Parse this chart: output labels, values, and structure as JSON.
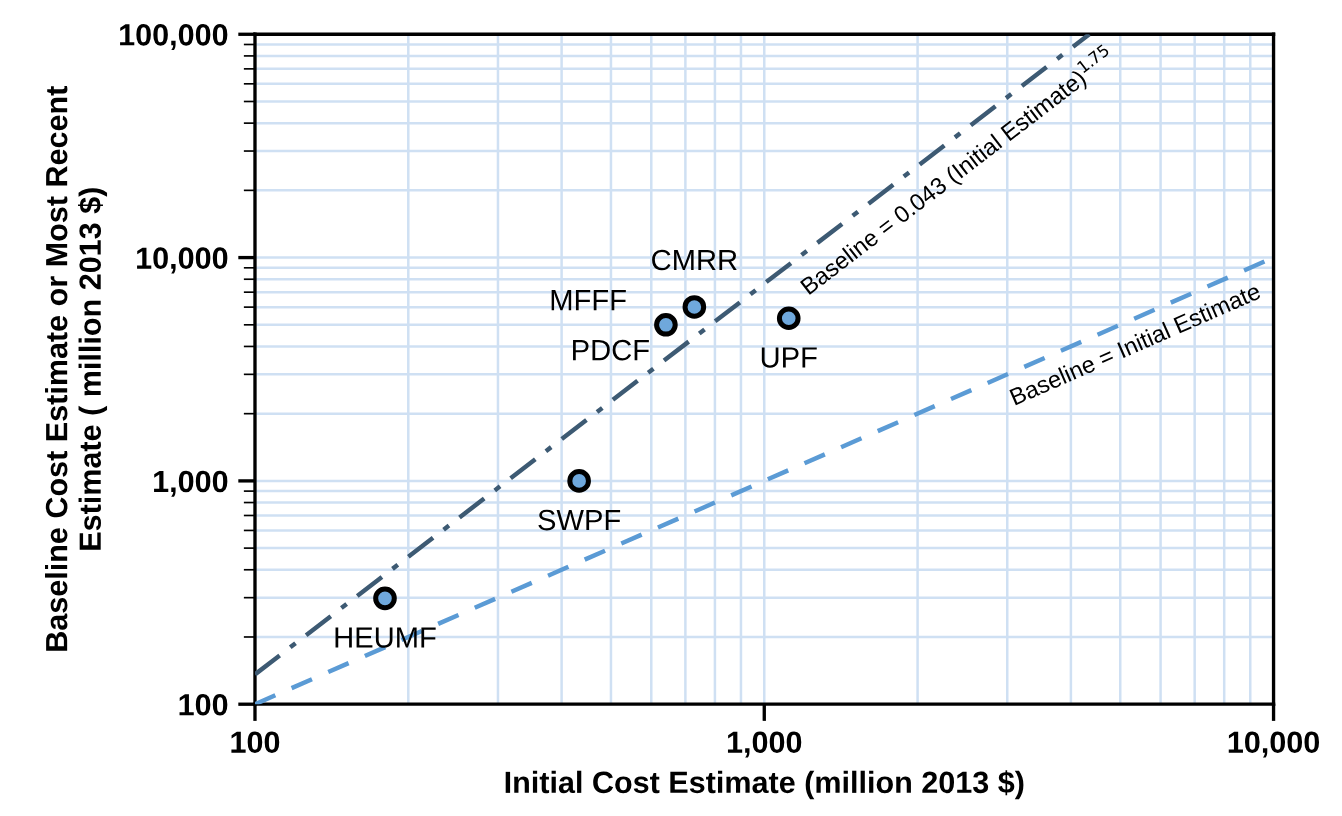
{
  "chart_data": {
    "type": "scatter",
    "xlabel": "Initial Cost Estimate (million 2013 $)",
    "ylabel": "Baseline Cost Estimate or Most Recent\nEstimate ( million 2013 $)",
    "log": "xy",
    "grid": true,
    "legend": false,
    "xlim": [
      100,
      10000
    ],
    "xticks": [
      100,
      {
        "value": 1000,
        "label": "1,000"
      },
      {
        "value": 10000,
        "label": "10,000"
      }
    ],
    "ylim": [
      100,
      100000
    ],
    "yticks": [
      100,
      {
        "value": 1000,
        "label": "1,000"
      },
      {
        "value": 10000,
        "label": "10,000"
      },
      {
        "value": 100000,
        "label": "100,000"
      }
    ],
    "series": [
      {
        "marker": "circle",
        "color": "#6fa8dc",
        "x": [
          180,
          433,
          641,
          729,
          1117
        ],
        "values": [
          298,
          1000,
          5000,
          6010,
          5350
        ]
      },
      {
        "type": "line",
        "marker": "none",
        "color": "#3d5a73",
        "line_style": "dashdot",
        "x": [
          100,
          4347
        ],
        "values": [
          136,
          100000
        ]
      },
      {
        "type": "line",
        "marker": "none",
        "color": "#5b9bd5",
        "line_style": "dashed",
        "x": [
          100,
          10000
        ],
        "values": [
          100,
          10000
        ]
      }
    ],
    "annotations": [
      {
        "text": "HEUMF",
        "x": 180,
        "y": 298
      },
      {
        "text": "SWPF",
        "x": 433,
        "y": 1000
      },
      {
        "text": "MFFF",
        "x": 641,
        "y": 5000
      },
      {
        "text": "PDCF",
        "x": 641,
        "y": 5000
      },
      {
        "text": "CMRR",
        "x": 729,
        "y": 6010
      },
      {
        "text": "UPF",
        "x": 1117,
        "y": 5350
      },
      {
        "text": "Baseline = 0.043 (Initial Estimate)$^{1.75}$",
        "x": 2200,
        "y": 30400
      },
      {
        "text": "Baseline = Initial Estimate",
        "x": 5000,
        "y": 5000
      }
    ]
  }
}
